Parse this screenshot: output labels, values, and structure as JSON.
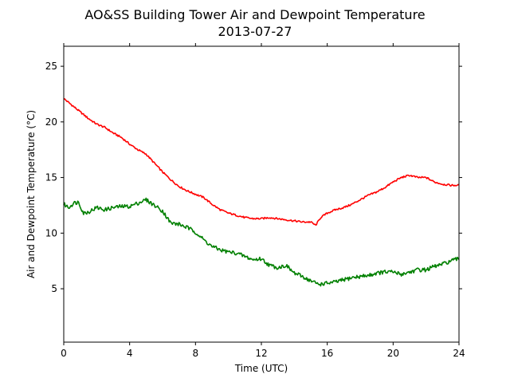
{
  "chart_data": {
    "type": "line",
    "title": "AO&SS Building Tower Air and Dewpoint Temperature",
    "subtitle": "2013-07-27",
    "xlabel": "Time (UTC)",
    "ylabel": "Air and Dewpoint Temperature (°C)",
    "xlim": [
      0,
      24
    ],
    "ylim": [
      0.2,
      26.8
    ],
    "x_ticks": [
      0,
      4,
      8,
      12,
      16,
      20,
      24
    ],
    "y_ticks": [
      5,
      10,
      15,
      20,
      25
    ],
    "grid": false,
    "legend": "none",
    "series": [
      {
        "color": "#ff0000",
        "x": [
          0,
          0.25,
          0.5,
          1,
          1.5,
          2,
          2.5,
          3,
          3.5,
          4,
          4.5,
          5,
          5.5,
          6,
          6.5,
          7,
          7.5,
          8,
          8.5,
          9,
          9.5,
          10,
          10.5,
          11,
          11.5,
          12,
          12.5,
          13,
          13.5,
          14,
          14.5,
          15,
          15.3,
          15.6,
          16,
          16.5,
          17,
          17.5,
          18,
          18.5,
          19,
          19.5,
          20,
          20.5,
          21,
          21.5,
          22,
          22.5,
          23,
          23.5,
          24
        ],
        "y": [
          22.1,
          21.8,
          21.5,
          20.9,
          20.3,
          19.8,
          19.5,
          19.0,
          18.6,
          18.0,
          17.5,
          17.1,
          16.3,
          15.5,
          14.8,
          14.2,
          13.8,
          13.5,
          13.2,
          12.6,
          12.1,
          11.8,
          11.6,
          11.4,
          11.3,
          11.3,
          11.4,
          11.3,
          11.2,
          11.1,
          11.0,
          11.0,
          10.7,
          11.4,
          11.8,
          12.1,
          12.3,
          12.6,
          13.0,
          13.4,
          13.7,
          14.1,
          14.6,
          15.0,
          15.2,
          15.0,
          15.0,
          14.6,
          14.4,
          14.3,
          14.3
        ]
      },
      {
        "color": "#008000",
        "x": [
          0,
          0.3,
          0.6,
          0.9,
          1.2,
          1.5,
          2.0,
          2.5,
          3.0,
          3.5,
          4.0,
          4.5,
          5.0,
          5.5,
          6.0,
          6.5,
          7.0,
          7.5,
          8.0,
          8.5,
          9.0,
          9.5,
          10.0,
          10.5,
          11.0,
          11.5,
          12.0,
          12.5,
          13.0,
          13.5,
          14.0,
          14.5,
          15.0,
          15.5,
          16.0,
          16.5,
          17.0,
          17.5,
          18.0,
          18.5,
          19.0,
          19.5,
          20.0,
          20.5,
          21.0,
          21.5,
          22.0,
          22.5,
          23.0,
          23.5,
          24.0
        ],
        "y": [
          12.6,
          12.3,
          12.7,
          12.8,
          11.8,
          11.9,
          12.3,
          12.1,
          12.3,
          12.4,
          12.4,
          12.7,
          13.0,
          12.5,
          12.0,
          10.9,
          10.8,
          10.5,
          10.1,
          9.4,
          8.8,
          8.5,
          8.3,
          8.2,
          7.9,
          7.6,
          7.7,
          7.1,
          6.9,
          7.1,
          6.4,
          6.1,
          5.7,
          5.4,
          5.5,
          5.6,
          5.8,
          6.0,
          6.1,
          6.2,
          6.4,
          6.5,
          6.5,
          6.3,
          6.5,
          6.7,
          6.7,
          7.0,
          7.2,
          7.5,
          7.7
        ]
      }
    ]
  }
}
